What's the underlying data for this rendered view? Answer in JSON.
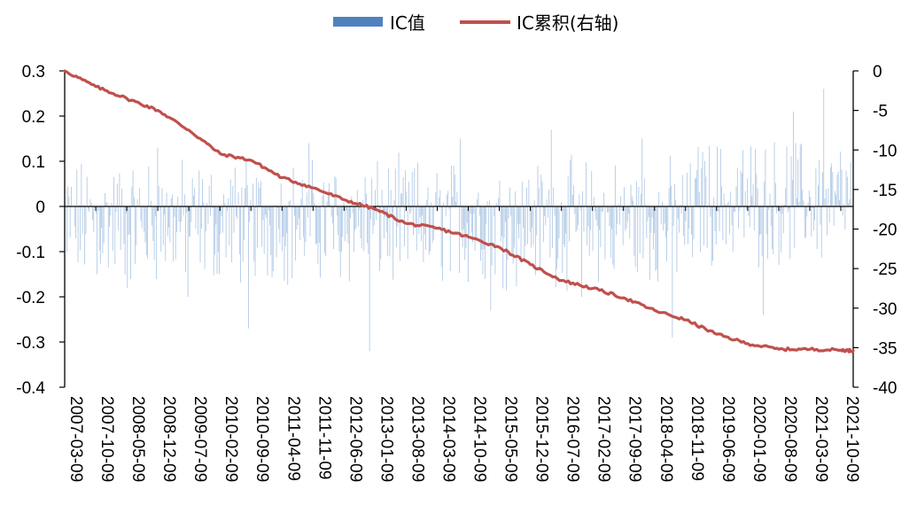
{
  "legend": {
    "ic_label": "IC值",
    "cum_label": "IC累积(右轴)"
  },
  "colors": {
    "bar": "#4f81bd",
    "bar_light": "#a9c4e3",
    "line": "#c0504d",
    "axis": "#000000"
  },
  "chart_data": {
    "type": "bar+line",
    "left_axis": {
      "ylim": [
        -0.4,
        0.3
      ],
      "ticks": [
        "0.3",
        "0.2",
        "0.1",
        "0",
        "-0.1",
        "-0.2",
        "-0.3",
        "-0.4"
      ]
    },
    "right_axis": {
      "ylim": [
        -40,
        0
      ],
      "ticks": [
        "0",
        "-5",
        "-10",
        "-15",
        "-20",
        "-25",
        "-30",
        "-35",
        "-40"
      ]
    },
    "x_tick_labels": [
      "2007-03-09",
      "2007-10-09",
      "2008-05-09",
      "2008-12-09",
      "2009-07-09",
      "2010-02-09",
      "2010-09-09",
      "2011-04-09",
      "2011-11-09",
      "2012-06-09",
      "2013-01-09",
      "2013-08-09",
      "2014-03-09",
      "2014-10-09",
      "2015-05-09",
      "2015-12-09",
      "2016-07-09",
      "2017-02-09",
      "2017-09-09",
      "2018-04-09",
      "2018-11-09",
      "2019-06-09",
      "2020-01-09",
      "2020-08-09",
      "2021-03-09",
      "2021-10-09"
    ],
    "series": [
      {
        "name": "IC值",
        "kind": "bar",
        "axis": "left",
        "approx_range": [
          -0.32,
          0.26
        ],
        "sample_values": [
          -0.1,
          -0.15,
          -0.18,
          0.13,
          -0.2,
          -0.1,
          -0.27,
          -0.05,
          0.14,
          -0.1,
          -0.32,
          -0.12,
          -0.1,
          0.15,
          -0.23,
          -0.12,
          0.17,
          -0.2,
          -0.05,
          0.15,
          -0.29,
          0.12,
          -0.1,
          -0.24,
          0.21,
          0.26,
          -0.1
        ]
      },
      {
        "name": "IC累积(右轴)",
        "kind": "line",
        "axis": "right",
        "points": [
          [
            "2007-03-09",
            0.0
          ],
          [
            "2007-10-09",
            -2.0
          ],
          [
            "2008-05-09",
            -3.5
          ],
          [
            "2008-12-09",
            -5.0
          ],
          [
            "2009-07-09",
            -7.5
          ],
          [
            "2010-02-09",
            -10.5
          ],
          [
            "2010-09-09",
            -11.3
          ],
          [
            "2011-04-09",
            -13.5
          ],
          [
            "2011-11-09",
            -14.8
          ],
          [
            "2012-06-09",
            -16.3
          ],
          [
            "2013-01-09",
            -17.5
          ],
          [
            "2013-08-09",
            -19.3
          ],
          [
            "2014-03-09",
            -19.9
          ],
          [
            "2014-10-09",
            -21.0
          ],
          [
            "2015-05-09",
            -22.3
          ],
          [
            "2015-12-09",
            -24.5
          ],
          [
            "2016-07-09",
            -26.5
          ],
          [
            "2017-02-09",
            -27.5
          ],
          [
            "2017-09-09",
            -28.7
          ],
          [
            "2018-04-09",
            -30.3
          ],
          [
            "2018-11-09",
            -31.5
          ],
          [
            "2019-06-09",
            -33.3
          ],
          [
            "2020-01-09",
            -34.5
          ],
          [
            "2020-08-09",
            -35.2
          ],
          [
            "2021-03-09",
            -35.2
          ],
          [
            "2021-10-09",
            -35.3
          ],
          [
            "2021-12-31",
            -35.4
          ]
        ]
      }
    ],
    "legend_position": "top-center",
    "grid": false
  }
}
